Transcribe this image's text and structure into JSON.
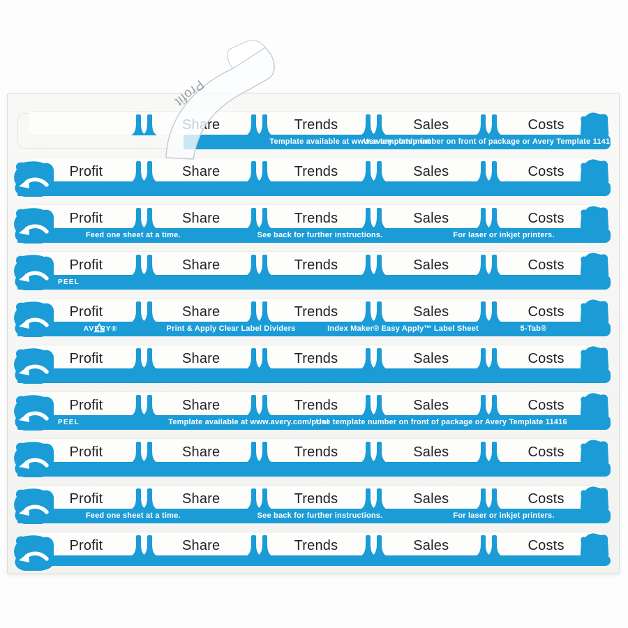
{
  "tabs": [
    "Profit",
    "Share",
    "Trends",
    "Sales",
    "Costs"
  ],
  "peeled_label": {
    "text": "Profit"
  },
  "messages": {
    "peel": "PEEL",
    "template_available": "Template available at www.avery.com/print",
    "template_number": "Use template number on front of package or Avery Template 11416",
    "feed": "Feed one sheet at a time.",
    "see_back": "See back for further instructions.",
    "printers": "For laser or inkjet printers."
  },
  "brand": {
    "name": "AVERY®",
    "product_title": "Print & Apply Clear Label Dividers",
    "sheet_title": "Index Maker® Easy Apply™ Label Sheet",
    "tab_config": "5-Tab®"
  },
  "colors": {
    "accent_blue": "#1B9CD7",
    "bar_text": "#FFFFFF",
    "label_text": "#212226"
  },
  "rows": [
    {
      "variant": "peeled",
      "bar": "template"
    },
    {
      "variant": "full",
      "bar": "plain"
    },
    {
      "variant": "full",
      "bar": "feed"
    },
    {
      "variant": "full",
      "bar": "peel"
    },
    {
      "variant": "full",
      "bar": "brand"
    },
    {
      "variant": "full",
      "bar": "plain"
    },
    {
      "variant": "full",
      "bar": "peel_template"
    },
    {
      "variant": "full",
      "bar": "plain"
    },
    {
      "variant": "full",
      "bar": "feed"
    },
    {
      "variant": "full",
      "bar": "plain",
      "bottom": true
    }
  ]
}
